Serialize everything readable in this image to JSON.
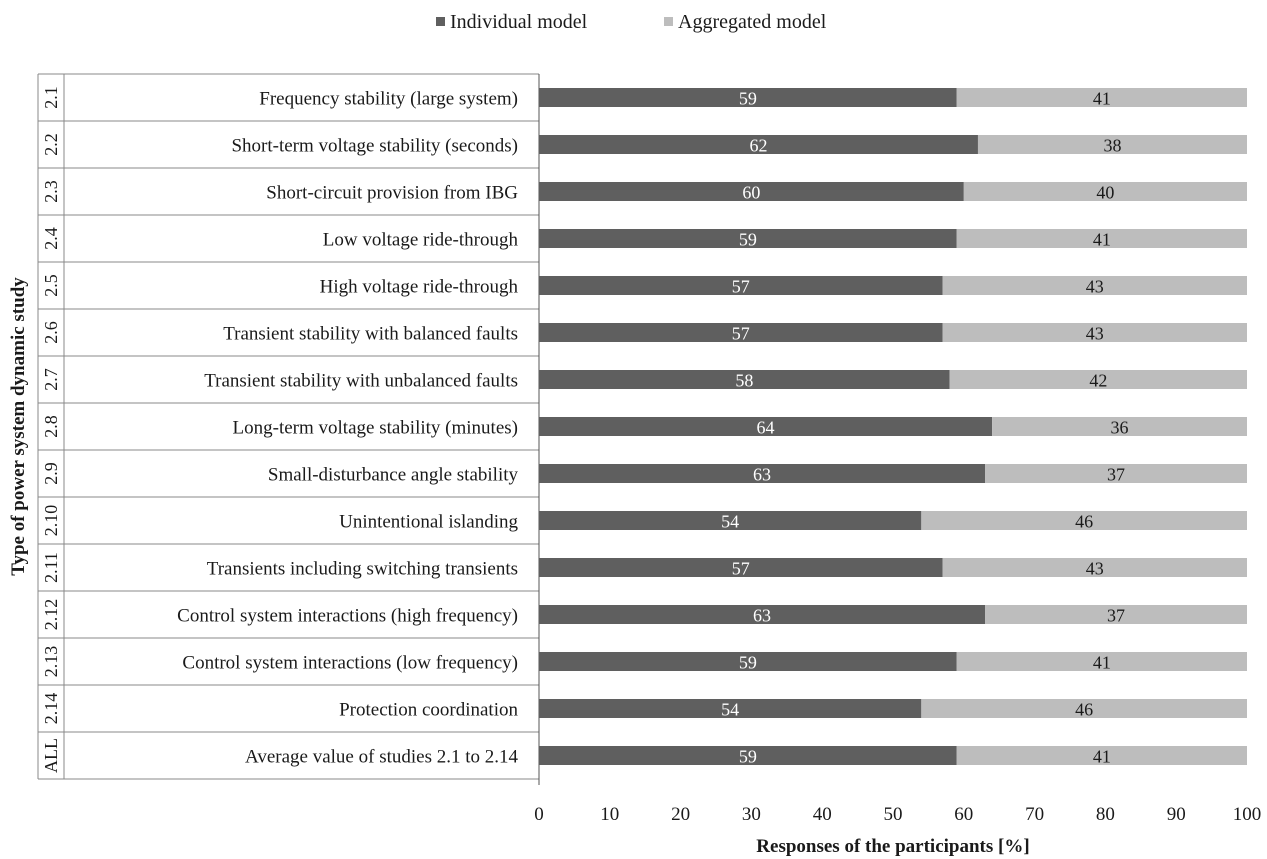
{
  "chart_data": {
    "type": "bar",
    "orientation": "horizontal",
    "stacked": true,
    "codes": [
      "2.1",
      "2.2",
      "2.3",
      "2.4",
      "2.5",
      "2.6",
      "2.7",
      "2.8",
      "2.9",
      "2.10",
      "2.11",
      "2.12",
      "2.13",
      "2.14",
      "ALL"
    ],
    "categories": [
      "Frequency stability (large system)",
      "Short-term voltage stability (seconds)",
      "Short-circuit provision from IBG",
      "Low voltage ride-through",
      "High voltage ride-through",
      "Transient stability with balanced faults",
      "Transient stability with unbalanced faults",
      "Long-term voltage stability (minutes)",
      "Small-disturbance angle stability",
      "Unintentional islanding",
      "Transients including switching transients",
      "Control system interactions (high frequency)",
      "Control system interactions (low frequency)",
      "Protection coordination",
      "Average value of studies 2.1 to 2.14"
    ],
    "series": [
      {
        "name": "Individual model",
        "color": "#5f5f5f",
        "values": [
          59,
          62,
          60,
          59,
          57,
          57,
          58,
          64,
          63,
          54,
          57,
          63,
          59,
          54,
          59
        ]
      },
      {
        "name": "Aggregated model",
        "color": "#bdbdbd",
        "values": [
          41,
          38,
          40,
          41,
          43,
          43,
          42,
          36,
          37,
          46,
          43,
          37,
          41,
          46,
          41
        ]
      }
    ],
    "xlabel": "Responses of the participants [%]",
    "ylabel": "Type of power system dynamic study",
    "xlim": [
      0,
      100
    ],
    "xticks": [
      0,
      10,
      20,
      30,
      40,
      50,
      60,
      70,
      80,
      90,
      100
    ],
    "legend_position": "top-center",
    "grid": false
  }
}
